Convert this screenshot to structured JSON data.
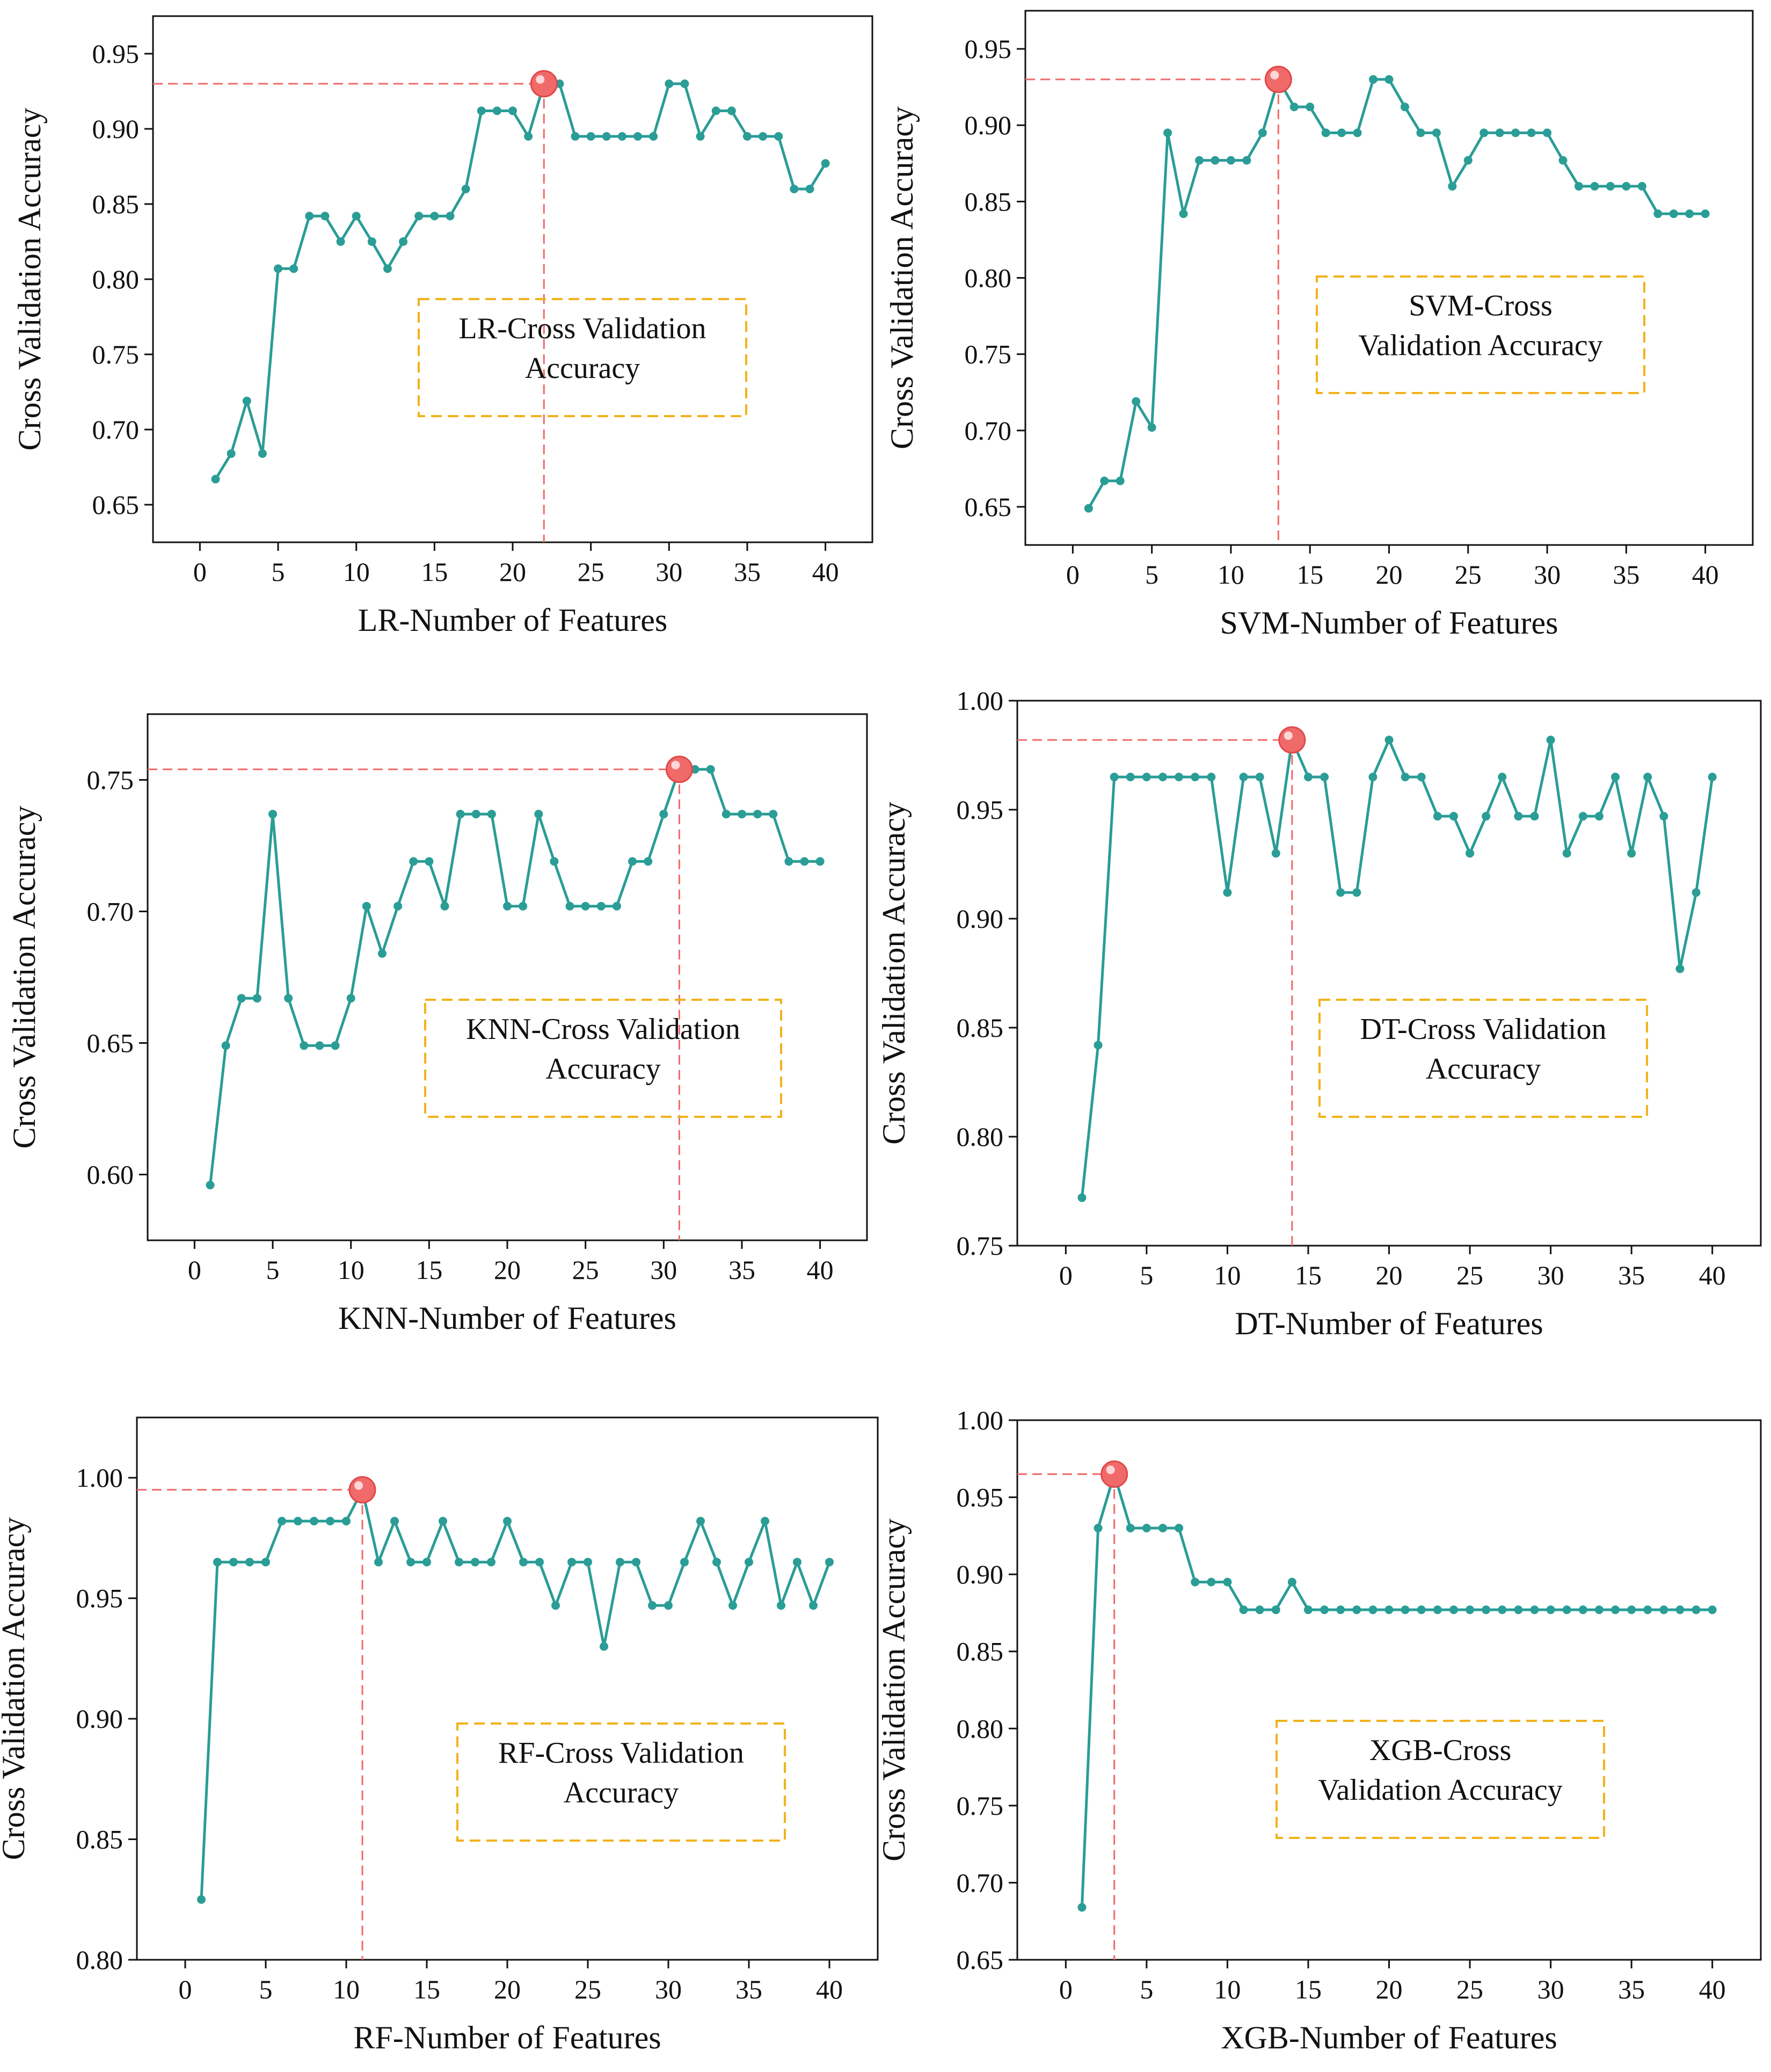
{
  "chart_data": [
    {
      "type": "line",
      "xlabel": "LR-Number of Features",
      "ylabel": "Cross Validation Accuracy",
      "xlim": [
        -3,
        43
      ],
      "xticks": [
        0,
        5,
        10,
        15,
        20,
        25,
        30,
        35,
        40
      ],
      "ylim": [
        0.625,
        0.975
      ],
      "yticks": [
        "0.65",
        "0.70",
        "0.75",
        "0.80",
        "0.85",
        "0.90",
        "0.95"
      ],
      "annotation": [
        "LR-Cross Validation",
        "Accuracy"
      ],
      "highlight": {
        "x": 22,
        "y": 0.93
      },
      "x": [
        1,
        2,
        3,
        4,
        5,
        6,
        7,
        8,
        9,
        10,
        11,
        12,
        13,
        14,
        15,
        16,
        17,
        18,
        19,
        20,
        21,
        22,
        23,
        24,
        25,
        26,
        27,
        28,
        29,
        30,
        31,
        32,
        33,
        34,
        35,
        36,
        37,
        38,
        39,
        40
      ],
      "values": [
        0.667,
        0.684,
        0.719,
        0.684,
        0.807,
        0.807,
        0.842,
        0.842,
        0.825,
        0.842,
        0.825,
        0.807,
        0.825,
        0.842,
        0.842,
        0.842,
        0.86,
        0.912,
        0.912,
        0.912,
        0.895,
        0.93,
        0.93,
        0.895,
        0.895,
        0.895,
        0.895,
        0.895,
        0.895,
        0.93,
        0.93,
        0.895,
        0.912,
        0.912,
        0.895,
        0.895,
        0.895,
        0.86,
        0.86,
        0.877
      ],
      "colors": {
        "line": "#2a9d96",
        "highlight": "#f06a6a",
        "guide": "#f06a6a",
        "box": "#f2b21b"
      }
    },
    {
      "type": "line",
      "xlabel": "SVM-Number of Features",
      "ylabel": "Cross Validation Accuracy",
      "xlim": [
        -3,
        43
      ],
      "xticks": [
        0,
        5,
        10,
        15,
        20,
        25,
        30,
        35,
        40
      ],
      "ylim": [
        0.625,
        0.975
      ],
      "yticks": [
        "0.65",
        "0.70",
        "0.75",
        "0.80",
        "0.85",
        "0.90",
        "0.95"
      ],
      "annotation": [
        "SVM-Cross",
        "Validation Accuracy"
      ],
      "highlight": {
        "x": 13,
        "y": 0.93
      },
      "x": [
        1,
        2,
        3,
        4,
        5,
        6,
        7,
        8,
        9,
        10,
        11,
        12,
        13,
        14,
        15,
        16,
        17,
        18,
        19,
        20,
        21,
        22,
        23,
        24,
        25,
        26,
        27,
        28,
        29,
        30,
        31,
        32,
        33,
        34,
        35,
        36,
        37,
        38,
        39,
        40
      ],
      "values": [
        0.649,
        0.667,
        0.667,
        0.719,
        0.702,
        0.895,
        0.842,
        0.877,
        0.877,
        0.877,
        0.877,
        0.895,
        0.93,
        0.912,
        0.912,
        0.895,
        0.895,
        0.895,
        0.93,
        0.93,
        0.912,
        0.895,
        0.895,
        0.86,
        0.877,
        0.895,
        0.895,
        0.895,
        0.895,
        0.895,
        0.877,
        0.86,
        0.86,
        0.86,
        0.86,
        0.86,
        0.842,
        0.842,
        0.842,
        0.842
      ],
      "colors": {
        "line": "#2a9d96",
        "highlight": "#f06a6a",
        "guide": "#f06a6a",
        "box": "#f2b21b"
      }
    },
    {
      "type": "line",
      "xlabel": "KNN-Number of Features",
      "ylabel": "Cross Validation Accuracy",
      "xlim": [
        -3,
        43
      ],
      "xticks": [
        0,
        5,
        10,
        15,
        20,
        25,
        30,
        35,
        40
      ],
      "ylim": [
        0.575,
        0.775
      ],
      "yticks": [
        "0.60",
        "0.65",
        "0.70",
        "0.75"
      ],
      "annotation": [
        "KNN-Cross Validation",
        "Accuracy"
      ],
      "highlight": {
        "x": 31,
        "y": 0.754
      },
      "x": [
        1,
        2,
        3,
        4,
        5,
        6,
        7,
        8,
        9,
        10,
        11,
        12,
        13,
        14,
        15,
        16,
        17,
        18,
        19,
        20,
        21,
        22,
        23,
        24,
        25,
        26,
        27,
        28,
        29,
        30,
        31,
        32,
        33,
        34,
        35,
        36,
        37,
        38,
        39,
        40
      ],
      "values": [
        0.596,
        0.649,
        0.667,
        0.667,
        0.737,
        0.667,
        0.649,
        0.649,
        0.649,
        0.667,
        0.702,
        0.684,
        0.702,
        0.719,
        0.719,
        0.702,
        0.737,
        0.737,
        0.737,
        0.702,
        0.702,
        0.737,
        0.719,
        0.702,
        0.702,
        0.702,
        0.702,
        0.719,
        0.719,
        0.737,
        0.754,
        0.754,
        0.754,
        0.737,
        0.737,
        0.737,
        0.737,
        0.719,
        0.719,
        0.719
      ],
      "colors": {
        "line": "#2a9d96",
        "highlight": "#f06a6a",
        "guide": "#f06a6a",
        "box": "#f2b21b"
      }
    },
    {
      "type": "line",
      "xlabel": "DT-Number of Features",
      "ylabel": "Cross Validation Accuracy",
      "xlim": [
        -3,
        43
      ],
      "xticks": [
        0,
        5,
        10,
        15,
        20,
        25,
        30,
        35,
        40
      ],
      "ylim": [
        0.75,
        1.0
      ],
      "yticks": [
        "0.75",
        "0.80",
        "0.85",
        "0.90",
        "0.95",
        "1.00"
      ],
      "annotation": [
        "DT-Cross Validation",
        "Accuracy"
      ],
      "highlight": {
        "x": 14,
        "y": 0.982
      },
      "x": [
        1,
        2,
        3,
        4,
        5,
        6,
        7,
        8,
        9,
        10,
        11,
        12,
        13,
        14,
        15,
        16,
        17,
        18,
        19,
        20,
        21,
        22,
        23,
        24,
        25,
        26,
        27,
        28,
        29,
        30,
        31,
        32,
        33,
        34,
        35,
        36,
        37,
        38,
        39,
        40
      ],
      "values": [
        0.772,
        0.842,
        0.965,
        0.965,
        0.965,
        0.965,
        0.965,
        0.965,
        0.965,
        0.912,
        0.965,
        0.965,
        0.93,
        0.982,
        0.965,
        0.965,
        0.912,
        0.912,
        0.965,
        0.982,
        0.965,
        0.965,
        0.947,
        0.947,
        0.93,
        0.947,
        0.965,
        0.947,
        0.947,
        0.982,
        0.93,
        0.947,
        0.947,
        0.965,
        0.93,
        0.965,
        0.947,
        0.877,
        0.912,
        0.965
      ],
      "colors": {
        "line": "#2a9d96",
        "highlight": "#f06a6a",
        "guide": "#f06a6a",
        "box": "#f2b21b"
      }
    },
    {
      "type": "line",
      "xlabel": "RF-Number of Features",
      "ylabel": "Cross Validation Accuracy",
      "xlim": [
        -3,
        43
      ],
      "xticks": [
        0,
        5,
        10,
        15,
        20,
        25,
        30,
        35,
        40
      ],
      "ylim": [
        0.8,
        1.025
      ],
      "yticks": [
        "0.80",
        "0.85",
        "0.90",
        "0.95",
        "1.00"
      ],
      "annotation": [
        "RF-Cross Validation",
        "Accuracy"
      ],
      "highlight": {
        "x": 11,
        "y": 0.995
      },
      "x": [
        1,
        2,
        3,
        4,
        5,
        6,
        7,
        8,
        9,
        10,
        11,
        12,
        13,
        14,
        15,
        16,
        17,
        18,
        19,
        20,
        21,
        22,
        23,
        24,
        25,
        26,
        27,
        28,
        29,
        30,
        31,
        32,
        33,
        34,
        35,
        36,
        37,
        38,
        39,
        40
      ],
      "values": [
        0.825,
        0.965,
        0.965,
        0.965,
        0.965,
        0.982,
        0.982,
        0.982,
        0.982,
        0.982,
        0.995,
        0.965,
        0.982,
        0.965,
        0.965,
        0.982,
        0.965,
        0.965,
        0.965,
        0.982,
        0.965,
        0.965,
        0.947,
        0.965,
        0.965,
        0.93,
        0.965,
        0.965,
        0.947,
        0.947,
        0.965,
        0.982,
        0.965,
        0.947,
        0.965,
        0.982,
        0.947,
        0.965,
        0.947,
        0.965
      ],
      "colors": {
        "line": "#2a9d96",
        "highlight": "#f06a6a",
        "guide": "#f06a6a",
        "box": "#f2b21b"
      }
    },
    {
      "type": "line",
      "xlabel": "XGB-Number of Features",
      "ylabel": "Cross Validation Accuracy",
      "xlim": [
        -3,
        43
      ],
      "xticks": [
        0,
        5,
        10,
        15,
        20,
        25,
        30,
        35,
        40
      ],
      "ylim": [
        0.65,
        1.0
      ],
      "yticks": [
        "0.65",
        "0.70",
        "0.75",
        "0.80",
        "0.85",
        "0.90",
        "0.95",
        "1.00"
      ],
      "annotation": [
        "XGB-Cross",
        "Validation Accuracy"
      ],
      "highlight": {
        "x": 3,
        "y": 0.965
      },
      "x": [
        1,
        2,
        3,
        4,
        5,
        6,
        7,
        8,
        9,
        10,
        11,
        12,
        13,
        14,
        15,
        16,
        17,
        18,
        19,
        20,
        21,
        22,
        23,
        24,
        25,
        26,
        27,
        28,
        29,
        30,
        31,
        32,
        33,
        34,
        35,
        36,
        37,
        38,
        39,
        40
      ],
      "values": [
        0.684,
        0.93,
        0.965,
        0.93,
        0.93,
        0.93,
        0.93,
        0.895,
        0.895,
        0.895,
        0.877,
        0.877,
        0.877,
        0.895,
        0.877,
        0.877,
        0.877,
        0.877,
        0.877,
        0.877,
        0.877,
        0.877,
        0.877,
        0.877,
        0.877,
        0.877,
        0.877,
        0.877,
        0.877,
        0.877,
        0.877,
        0.877,
        0.877,
        0.877,
        0.877,
        0.877,
        0.877,
        0.877,
        0.877,
        0.877
      ],
      "colors": {
        "line": "#2a9d96",
        "highlight": "#f06a6a",
        "guide": "#f06a6a",
        "box": "#f2b21b"
      }
    }
  ]
}
